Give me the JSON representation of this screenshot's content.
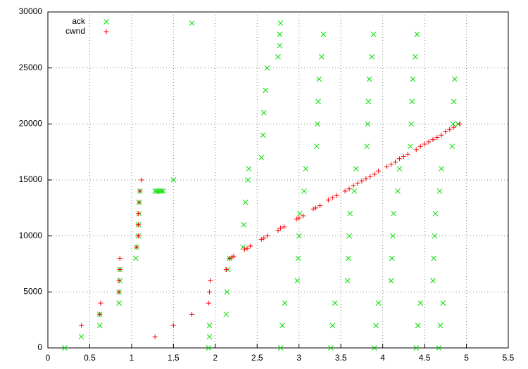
{
  "chart_data": {
    "type": "scatter",
    "xlim": [
      0,
      5.5
    ],
    "xticks": [
      0,
      0.5,
      1,
      1.5,
      2,
      2.5,
      3,
      3.5,
      4,
      4.5,
      5,
      5.5
    ],
    "ylim": [
      0,
      30000
    ],
    "yticks": [
      0,
      5000,
      10000,
      15000,
      20000,
      25000,
      30000
    ],
    "grid": true,
    "legend": "top-left",
    "series": [
      {
        "name": "ack",
        "color": "#00dd00",
        "marker": "x",
        "x": [
          0.2,
          0.4,
          0.62,
          0.62,
          0.85,
          0.85,
          0.86,
          0.86,
          1.05,
          1.06,
          1.08,
          1.08,
          1.09,
          1.09,
          1.1,
          1.28,
          1.3,
          1.32,
          1.34,
          1.36,
          1.38,
          1.5,
          1.72,
          1.92,
          1.93,
          1.93,
          2.13,
          2.14,
          2.15,
          2.17,
          2.33,
          2.34,
          2.36,
          2.39,
          2.4,
          2.55,
          2.57,
          2.58,
          2.6,
          2.62,
          2.75,
          2.77,
          2.77,
          2.78,
          2.78,
          2.8,
          2.83,
          2.98,
          2.99,
          3.0,
          3.01,
          3.06,
          3.08,
          3.21,
          3.22,
          3.23,
          3.24,
          3.27,
          3.29,
          3.38,
          3.4,
          3.43,
          3.58,
          3.59,
          3.6,
          3.61,
          3.66,
          3.68,
          3.81,
          3.82,
          3.83,
          3.84,
          3.87,
          3.89,
          3.9,
          3.92,
          3.95,
          4.1,
          4.11,
          4.12,
          4.13,
          4.18,
          4.2,
          4.33,
          4.34,
          4.35,
          4.36,
          4.39,
          4.41,
          4.4,
          4.42,
          4.45,
          4.6,
          4.61,
          4.62,
          4.63,
          4.68,
          4.7,
          4.83,
          4.84,
          4.85,
          4.86,
          4.67,
          4.69,
          4.72,
          4.9
        ],
        "values": [
          0,
          1000,
          2000,
          3000,
          4000,
          5000,
          6000,
          7000,
          8000,
          9000,
          10000,
          11000,
          12000,
          13000,
          14000,
          14000,
          14000,
          14000,
          14000,
          14000,
          14000,
          15000,
          29000,
          0,
          1000,
          2000,
          3000,
          5000,
          7000,
          8000,
          9000,
          11000,
          13000,
          15000,
          16000,
          17000,
          19000,
          21000,
          23000,
          25000,
          26000,
          27000,
          28000,
          29000,
          0,
          2000,
          4000,
          6000,
          8000,
          10000,
          12000,
          14000,
          16000,
          18000,
          20000,
          22000,
          24000,
          26000,
          28000,
          0,
          2000,
          4000,
          6000,
          8000,
          10000,
          12000,
          14000,
          16000,
          18000,
          20000,
          22000,
          24000,
          26000,
          28000,
          0,
          2000,
          4000,
          6000,
          8000,
          10000,
          12000,
          14000,
          16000,
          18000,
          20000,
          22000,
          24000,
          26000,
          28000,
          0,
          2000,
          4000,
          6000,
          8000,
          10000,
          12000,
          14000,
          16000,
          18000,
          20000,
          22000,
          24000,
          0,
          2000,
          4000,
          20000
        ]
      },
      {
        "name": "cwnd",
        "color": "#ff0000",
        "marker": "+",
        "x": [
          0.4,
          0.62,
          0.63,
          0.85,
          0.85,
          0.86,
          0.86,
          1.06,
          1.08,
          1.08,
          1.08,
          1.09,
          1.1,
          1.12,
          1.28,
          1.5,
          1.72,
          1.92,
          1.93,
          1.94,
          2.13,
          2.17,
          2.2,
          2.22,
          2.35,
          2.38,
          2.42,
          2.55,
          2.58,
          2.62,
          2.75,
          2.78,
          2.82,
          2.97,
          3.0,
          3.05,
          3.17,
          3.2,
          3.25,
          3.35,
          3.4,
          3.45,
          3.55,
          3.6,
          3.65,
          3.7,
          3.75,
          3.8,
          3.85,
          3.9,
          3.95,
          4.05,
          4.1,
          4.15,
          4.2,
          4.25,
          4.3,
          4.4,
          4.45,
          4.5,
          4.55,
          4.6,
          4.65,
          4.7,
          4.75,
          4.8,
          4.85,
          4.92
        ],
        "values": [
          2000,
          3000,
          4000,
          5000,
          6000,
          7000,
          8000,
          9000,
          10000,
          11000,
          12000,
          13000,
          14000,
          15000,
          1000,
          2000,
          3000,
          4000,
          5000,
          6000,
          7000,
          8000,
          8100,
          8200,
          8800,
          8900,
          9100,
          9700,
          9800,
          10000,
          10500,
          10700,
          10800,
          11500,
          11600,
          11800,
          12400,
          12500,
          12700,
          13200,
          13400,
          13600,
          14000,
          14200,
          14500,
          14700,
          14900,
          15100,
          15300,
          15500,
          15800,
          16200,
          16400,
          16600,
          16900,
          17100,
          17300,
          17700,
          18000,
          18200,
          18400,
          18600,
          18800,
          19000,
          19300,
          19500,
          19700,
          20000
        ]
      }
    ]
  }
}
